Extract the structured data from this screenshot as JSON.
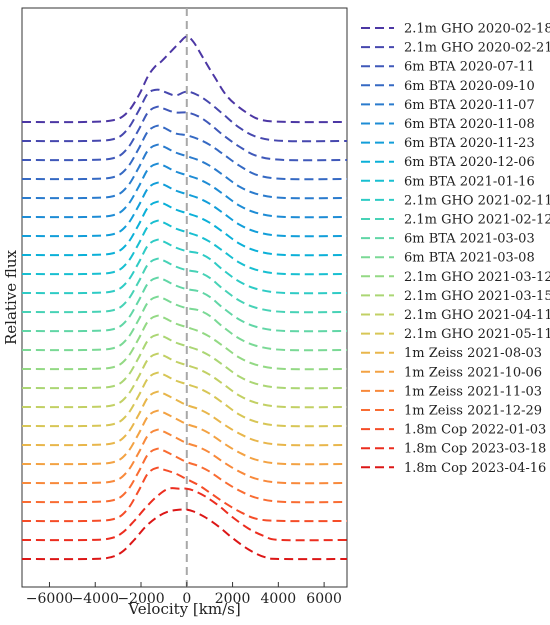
{
  "chart_data": {
    "type": "line",
    "xlabel": "Velocity [km/s]",
    "ylabel": "Relative flux",
    "xlim": [
      -7200,
      7000
    ],
    "xticks": [
      -6000,
      -4000,
      -2000,
      0,
      2000,
      4000,
      6000
    ],
    "xtick_labels": [
      "−6000",
      "−4000",
      "−2000",
      "0",
      "2000",
      "4000",
      "6000"
    ],
    "reference_line_x": 0,
    "legend_position": "outside right",
    "grid": false,
    "line_style": "dashed",
    "offset_step": 0.1,
    "series": [
      {
        "name": "2.1m GHO 2020-02-18",
        "color": "#4c37a4",
        "offset": 2.4,
        "x": [
          -7200,
          -4500,
          -3200,
          -2600,
          -2100,
          -1700,
          -1400,
          -1100,
          -700,
          -300,
          0,
          300,
          700,
          1200,
          1800,
          2600,
          3300,
          4500,
          7000
        ],
        "y": [
          0,
          0,
          0.01,
          0.05,
          0.14,
          0.24,
          0.29,
          0.32,
          0.37,
          0.42,
          0.45,
          0.42,
          0.34,
          0.24,
          0.13,
          0.05,
          0.01,
          0,
          0
        ]
      },
      {
        "name": "2.1m GHO 2020-02-21",
        "color": "#4647ae",
        "offset": 2.3,
        "x": [
          -7200,
          -4500,
          -3200,
          -2600,
          -2100,
          -1700,
          -1300,
          -1000,
          -500,
          0,
          500,
          1000,
          1600,
          2300,
          3100,
          4300,
          7000
        ],
        "y": [
          0,
          0,
          0.01,
          0.06,
          0.16,
          0.25,
          0.27,
          0.26,
          0.24,
          0.26,
          0.24,
          0.2,
          0.14,
          0.07,
          0.02,
          0,
          0
        ]
      },
      {
        "name": "6m BTA 2020-07-11",
        "color": "#3f58b9",
        "offset": 2.2,
        "x": [
          -7200,
          -4500,
          -3200,
          -2600,
          -2100,
          -1700,
          -1300,
          -1000,
          -500,
          0,
          500,
          1000,
          1600,
          2300,
          3100,
          4300,
          7000
        ],
        "y": [
          0,
          0,
          0.01,
          0.06,
          0.16,
          0.25,
          0.28,
          0.27,
          0.25,
          0.25,
          0.23,
          0.19,
          0.13,
          0.07,
          0.02,
          0,
          0
        ]
      },
      {
        "name": "6m BTA 2020-09-10",
        "color": "#3569c3",
        "offset": 2.1,
        "x": [
          -7200,
          -4500,
          -3200,
          -2600,
          -2100,
          -1700,
          -1300,
          -1000,
          -500,
          0,
          500,
          1000,
          1600,
          2300,
          3100,
          4300,
          7000
        ],
        "y": [
          0,
          0,
          0.01,
          0.06,
          0.16,
          0.25,
          0.28,
          0.27,
          0.24,
          0.23,
          0.21,
          0.18,
          0.13,
          0.07,
          0.02,
          0,
          0
        ]
      },
      {
        "name": "6m BTA 2020-11-07",
        "color": "#2a7bcd",
        "offset": 2.0,
        "x": [
          -7200,
          -4500,
          -3200,
          -2600,
          -2100,
          -1700,
          -1300,
          -1000,
          -500,
          0,
          500,
          1000,
          1600,
          2300,
          3100,
          4300,
          7000
        ],
        "y": [
          0,
          0,
          0.01,
          0.06,
          0.16,
          0.25,
          0.28,
          0.27,
          0.24,
          0.22,
          0.2,
          0.17,
          0.12,
          0.06,
          0.02,
          0,
          0
        ]
      },
      {
        "name": "6m BTA 2020-11-08",
        "color": "#1e8cd5",
        "offset": 1.9,
        "x": [
          -7200,
          -4500,
          -3200,
          -2600,
          -2100,
          -1700,
          -1300,
          -1000,
          -500,
          0,
          500,
          1000,
          1600,
          2300,
          3100,
          4300,
          7000
        ],
        "y": [
          0,
          0,
          0.01,
          0.06,
          0.16,
          0.25,
          0.28,
          0.27,
          0.24,
          0.22,
          0.2,
          0.17,
          0.12,
          0.06,
          0.02,
          0,
          0
        ]
      },
      {
        "name": "6m BTA 2020-11-23",
        "color": "#129ed9",
        "offset": 1.8,
        "x": [
          -7200,
          -4500,
          -3200,
          -2600,
          -2100,
          -1700,
          -1300,
          -1000,
          -500,
          0,
          500,
          1000,
          1600,
          2300,
          3100,
          4300,
          7000
        ],
        "y": [
          0,
          0,
          0.01,
          0.06,
          0.16,
          0.25,
          0.28,
          0.27,
          0.24,
          0.22,
          0.2,
          0.17,
          0.12,
          0.06,
          0.02,
          0,
          0
        ]
      },
      {
        "name": "6m BTA 2020-12-06",
        "color": "#0bb0d8",
        "offset": 1.7,
        "x": [
          -7200,
          -4500,
          -3200,
          -2600,
          -2100,
          -1700,
          -1300,
          -1000,
          -500,
          0,
          500,
          1000,
          1600,
          2300,
          3100,
          4300,
          7000
        ],
        "y": [
          0,
          0,
          0.01,
          0.06,
          0.16,
          0.25,
          0.28,
          0.27,
          0.24,
          0.22,
          0.2,
          0.17,
          0.12,
          0.06,
          0.02,
          0,
          0
        ]
      },
      {
        "name": "6m BTA 2021-01-16",
        "color": "#18bfd1",
        "offset": 1.6,
        "x": [
          -7200,
          -4500,
          -3200,
          -2600,
          -2100,
          -1700,
          -1300,
          -1000,
          -500,
          0,
          500,
          1000,
          1600,
          2300,
          3100,
          4300,
          7000
        ],
        "y": [
          0,
          0,
          0.01,
          0.06,
          0.16,
          0.25,
          0.28,
          0.27,
          0.24,
          0.22,
          0.2,
          0.17,
          0.12,
          0.06,
          0.02,
          0,
          0
        ]
      },
      {
        "name": "2.1m GHO 2021-02-11",
        "color": "#2ecbc5",
        "offset": 1.5,
        "x": [
          -7200,
          -4500,
          -3200,
          -2600,
          -2100,
          -1700,
          -1300,
          -1000,
          -500,
          0,
          500,
          1000,
          1600,
          2300,
          3100,
          4300,
          7000
        ],
        "y": [
          0,
          0,
          0.01,
          0.06,
          0.16,
          0.25,
          0.28,
          0.27,
          0.24,
          0.22,
          0.21,
          0.18,
          0.12,
          0.06,
          0.02,
          0,
          0
        ]
      },
      {
        "name": "2.1m GHO 2021-02-12",
        "color": "#47d2b6",
        "offset": 1.4,
        "x": [
          -7200,
          -4500,
          -3200,
          -2600,
          -2100,
          -1700,
          -1300,
          -1000,
          -500,
          0,
          500,
          1000,
          1600,
          2300,
          3100,
          4300,
          7000
        ],
        "y": [
          0,
          0,
          0.01,
          0.06,
          0.16,
          0.25,
          0.28,
          0.27,
          0.24,
          0.22,
          0.21,
          0.18,
          0.12,
          0.06,
          0.02,
          0,
          0
        ]
      },
      {
        "name": "6m BTA 2021-03-03",
        "color": "#61d6a6",
        "offset": 1.3,
        "x": [
          -7200,
          -4500,
          -3200,
          -2600,
          -2100,
          -1700,
          -1300,
          -1000,
          -500,
          0,
          500,
          1000,
          1600,
          2300,
          3100,
          4300,
          7000
        ],
        "y": [
          0,
          0,
          0.01,
          0.06,
          0.16,
          0.25,
          0.28,
          0.27,
          0.24,
          0.22,
          0.21,
          0.18,
          0.12,
          0.06,
          0.02,
          0,
          0
        ]
      },
      {
        "name": "6m BTA 2021-03-08",
        "color": "#7ad995",
        "offset": 1.2,
        "x": [
          -7200,
          -4500,
          -3200,
          -2600,
          -2100,
          -1700,
          -1300,
          -1000,
          -500,
          0,
          500,
          1000,
          1600,
          2300,
          3100,
          4300,
          7000
        ],
        "y": [
          0,
          0,
          0.01,
          0.06,
          0.16,
          0.25,
          0.28,
          0.27,
          0.24,
          0.22,
          0.21,
          0.18,
          0.12,
          0.06,
          0.02,
          0,
          0
        ]
      },
      {
        "name": "2.1m GHO 2021-03-12",
        "color": "#93d984",
        "offset": 1.1,
        "x": [
          -7200,
          -4500,
          -3200,
          -2600,
          -2100,
          -1700,
          -1300,
          -1000,
          -500,
          0,
          500,
          1000,
          1600,
          2300,
          3100,
          4300,
          7000
        ],
        "y": [
          0,
          0,
          0.01,
          0.06,
          0.16,
          0.25,
          0.28,
          0.27,
          0.24,
          0.22,
          0.2,
          0.17,
          0.12,
          0.06,
          0.02,
          0,
          0
        ]
      },
      {
        "name": "2.1m GHO 2021-03-15",
        "color": "#abd674",
        "offset": 1.0,
        "x": [
          -7200,
          -4500,
          -3200,
          -2600,
          -2100,
          -1700,
          -1300,
          -1000,
          -500,
          0,
          500,
          1000,
          1600,
          2300,
          3100,
          4300,
          7000
        ],
        "y": [
          0,
          0,
          0.01,
          0.06,
          0.16,
          0.25,
          0.28,
          0.27,
          0.24,
          0.22,
          0.2,
          0.17,
          0.12,
          0.06,
          0.02,
          0,
          0
        ]
      },
      {
        "name": "2.1m GHO 2021-04-11",
        "color": "#c2d064",
        "offset": 0.9,
        "x": [
          -7200,
          -4500,
          -3200,
          -2600,
          -2100,
          -1700,
          -1300,
          -1000,
          -500,
          0,
          500,
          1000,
          1600,
          2300,
          3100,
          4300,
          7000
        ],
        "y": [
          0,
          0,
          0.01,
          0.06,
          0.16,
          0.25,
          0.28,
          0.27,
          0.24,
          0.22,
          0.2,
          0.17,
          0.12,
          0.06,
          0.02,
          0,
          0
        ]
      },
      {
        "name": "2.1m GHO 2021-05-11",
        "color": "#d7c656",
        "offset": 0.8,
        "x": [
          -7200,
          -4500,
          -3200,
          -2600,
          -2100,
          -1700,
          -1300,
          -1000,
          -500,
          0,
          500,
          1000,
          1600,
          2300,
          3100,
          4300,
          7000
        ],
        "y": [
          0,
          0,
          0.01,
          0.06,
          0.16,
          0.25,
          0.28,
          0.27,
          0.24,
          0.22,
          0.2,
          0.17,
          0.12,
          0.06,
          0.02,
          0,
          0
        ]
      },
      {
        "name": "1m Zeiss 2021-08-03",
        "color": "#e8b64b",
        "offset": 0.7,
        "x": [
          -7200,
          -4500,
          -3200,
          -2600,
          -2100,
          -1700,
          -1300,
          -1000,
          -500,
          0,
          500,
          1000,
          1600,
          2300,
          3100,
          4300,
          7000
        ],
        "y": [
          0,
          0,
          0.01,
          0.06,
          0.16,
          0.25,
          0.28,
          0.27,
          0.24,
          0.21,
          0.19,
          0.16,
          0.11,
          0.06,
          0.02,
          0,
          0
        ]
      },
      {
        "name": "1m Zeiss 2021-10-06",
        "color": "#f3a243",
        "offset": 0.6,
        "x": [
          -7200,
          -4500,
          -3200,
          -2600,
          -2100,
          -1700,
          -1300,
          -1000,
          -500,
          0,
          500,
          1000,
          1600,
          2300,
          3100,
          4300,
          7000
        ],
        "y": [
          0,
          0,
          0.01,
          0.06,
          0.16,
          0.25,
          0.28,
          0.27,
          0.24,
          0.21,
          0.19,
          0.16,
          0.11,
          0.06,
          0.02,
          0,
          0
        ]
      },
      {
        "name": "1m Zeiss 2021-11-03",
        "color": "#f8893b",
        "offset": 0.5,
        "x": [
          -7200,
          -4500,
          -3200,
          -2600,
          -2100,
          -1700,
          -1300,
          -1000,
          -500,
          0,
          500,
          1000,
          1600,
          2300,
          3100,
          4300,
          7000
        ],
        "y": [
          0,
          0,
          0.01,
          0.06,
          0.16,
          0.25,
          0.28,
          0.27,
          0.24,
          0.21,
          0.19,
          0.16,
          0.11,
          0.06,
          0.02,
          0,
          0
        ]
      },
      {
        "name": "1m Zeiss 2021-12-29",
        "color": "#f96c32",
        "offset": 0.4,
        "x": [
          -7200,
          -4500,
          -3200,
          -2600,
          -2100,
          -1700,
          -1300,
          -1000,
          -500,
          0,
          500,
          1000,
          1600,
          2300,
          3100,
          4300,
          7000
        ],
        "y": [
          0,
          0,
          0.01,
          0.06,
          0.16,
          0.25,
          0.28,
          0.27,
          0.24,
          0.21,
          0.19,
          0.16,
          0.11,
          0.06,
          0.02,
          0,
          0
        ]
      },
      {
        "name": "1.8m Cop 2022-01-03",
        "color": "#f54d28",
        "offset": 0.3,
        "x": [
          -7200,
          -4500,
          -3200,
          -2600,
          -2100,
          -1700,
          -1300,
          -1000,
          -500,
          0,
          500,
          1000,
          1600,
          2300,
          3100,
          4300,
          7000
        ],
        "y": [
          0,
          0,
          0.01,
          0.06,
          0.16,
          0.25,
          0.28,
          0.27,
          0.25,
          0.22,
          0.19,
          0.15,
          0.1,
          0.05,
          0.01,
          0,
          0
        ]
      },
      {
        "name": "1.8m Cop 2023-03-18",
        "color": "#ec2d1f",
        "offset": 0.2,
        "x": [
          -7200,
          -4300,
          -3300,
          -2800,
          -2300,
          -1800,
          -1300,
          -800,
          -300,
          0,
          300,
          800,
          1400,
          2000,
          2700,
          3400,
          4100,
          7000
        ],
        "y": [
          0,
          0,
          0.01,
          0.04,
          0.1,
          0.17,
          0.23,
          0.27,
          0.27,
          0.27,
          0.26,
          0.23,
          0.18,
          0.12,
          0.06,
          0.02,
          0,
          0
        ]
      },
      {
        "name": "1.8m Cop 2023-04-16",
        "color": "#dc1616",
        "offset": 0.1,
        "x": [
          -7200,
          -4200,
          -3300,
          -2800,
          -2300,
          -1800,
          -1300,
          -800,
          -300,
          0,
          300,
          800,
          1400,
          2000,
          2700,
          3400,
          4100,
          7000
        ],
        "y": [
          0,
          0,
          0.01,
          0.04,
          0.1,
          0.17,
          0.22,
          0.25,
          0.26,
          0.26,
          0.25,
          0.22,
          0.17,
          0.11,
          0.05,
          0.01,
          0,
          0
        ]
      }
    ]
  }
}
